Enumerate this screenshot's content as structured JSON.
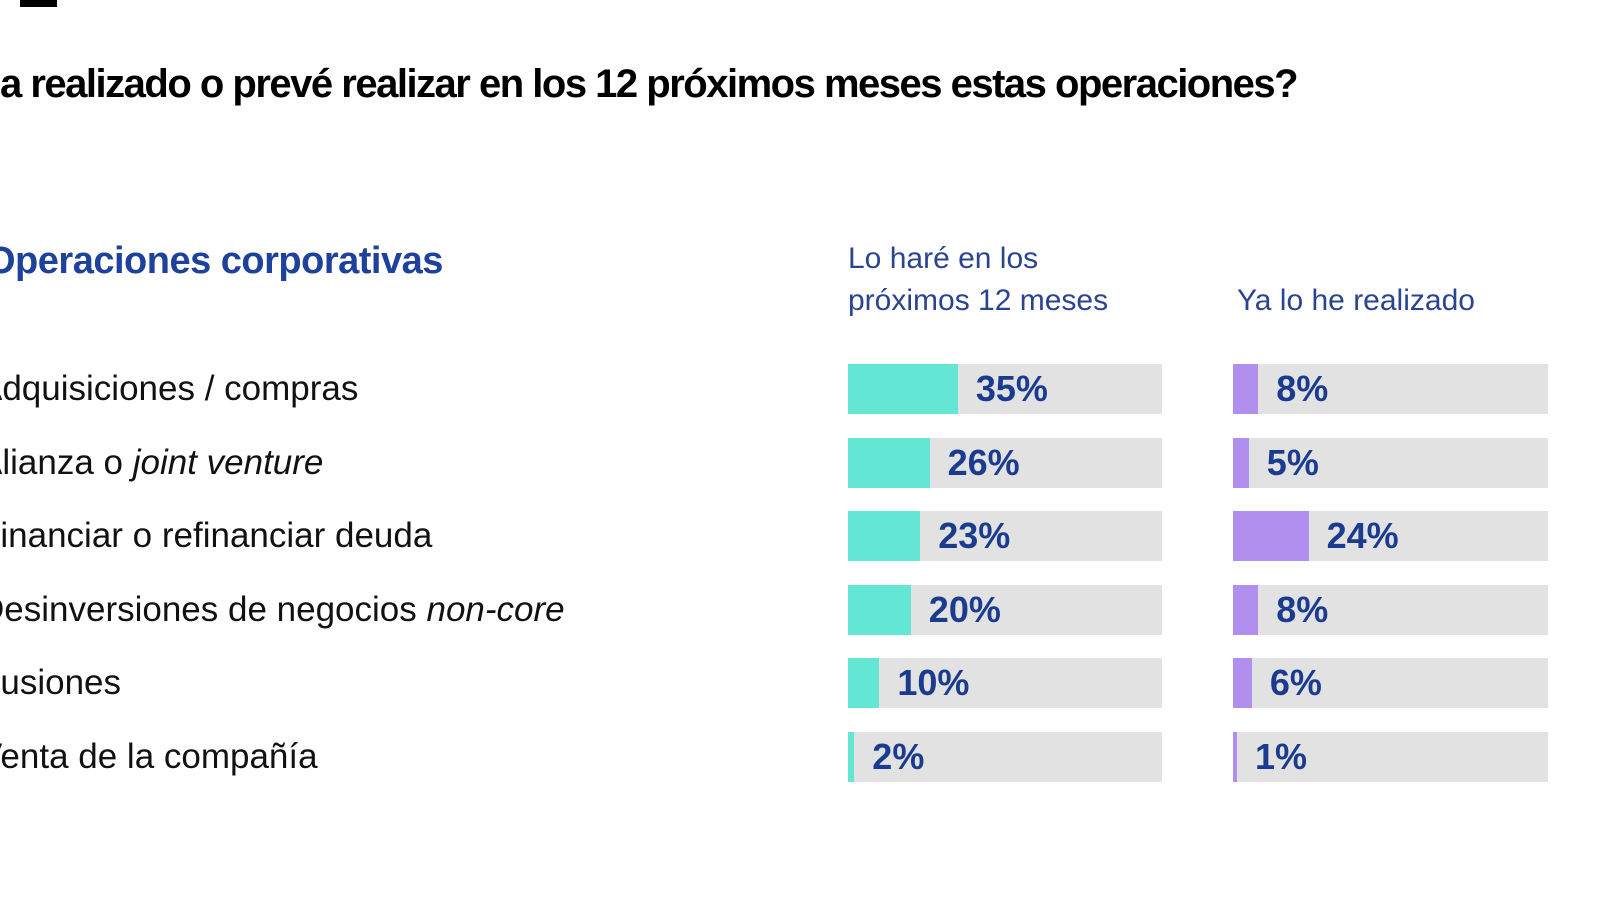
{
  "page": {
    "title": "a realizado o prevé realizar en los 12 próximos meses estas operaciones?",
    "section_heading": "Operaciones corporativas"
  },
  "columns": [
    {
      "label_line1": "Lo haré en los",
      "label_line2": "próximos 12 meses"
    },
    {
      "label": "Ya lo he realizado"
    }
  ],
  "colors": {
    "series_next12": "#63E6D3",
    "series_done": "#B18FEF",
    "track": "#E2E2E2",
    "value_text": "#1B3B8F",
    "heading_text": "#1E429B",
    "header_text": "#2A4490",
    "label_text": "#111111",
    "title_text": "#000000"
  },
  "chart_data": {
    "type": "bar",
    "orientation": "horizontal",
    "title": "a realizado o prevé realizar en los 12 próximos meses estas operaciones?",
    "group_heading": "Operaciones corporativas",
    "categories": [
      "Adquisiciones / compras",
      "Alianza o joint venture",
      "Financiar o refinanciar deuda",
      "Desinversiones de negocios non-core",
      "Fusiones",
      "Venta de la compañía"
    ],
    "series": [
      {
        "name": "Lo haré en los próximos 12 meses",
        "color": "#63E6D3",
        "unit": "%",
        "values": [
          35,
          26,
          23,
          20,
          10,
          2
        ]
      },
      {
        "name": "Ya lo he realizado",
        "color": "#B18FEF",
        "unit": "%",
        "values": [
          8,
          5,
          24,
          8,
          6,
          1
        ]
      }
    ],
    "value_labels": [
      [
        "35%",
        "26%",
        "23%",
        "20%",
        "10%",
        "2%"
      ],
      [
        "8%",
        "5%",
        "24%",
        "8%",
        "6%",
        "1%"
      ]
    ],
    "xlim": [
      0,
      100
    ],
    "grid": false,
    "legend_position": "column-headers-top",
    "rows": [
      {
        "prefix": "Adquisiciones / compras",
        "italic": "",
        "values": [
          35,
          8
        ]
      },
      {
        "prefix": "Alianza o ",
        "italic": "joint venture",
        "values": [
          26,
          5
        ]
      },
      {
        "prefix": "Financiar o refinanciar deuda",
        "italic": "",
        "values": [
          23,
          24
        ]
      },
      {
        "prefix": "Desinversiones de negocios ",
        "italic": "non-core",
        "values": [
          20,
          8
        ]
      },
      {
        "prefix": "Fusiones",
        "italic": "",
        "values": [
          10,
          6
        ]
      },
      {
        "prefix": "Venta de la compañía",
        "italic": "",
        "values": [
          2,
          1
        ]
      }
    ]
  }
}
